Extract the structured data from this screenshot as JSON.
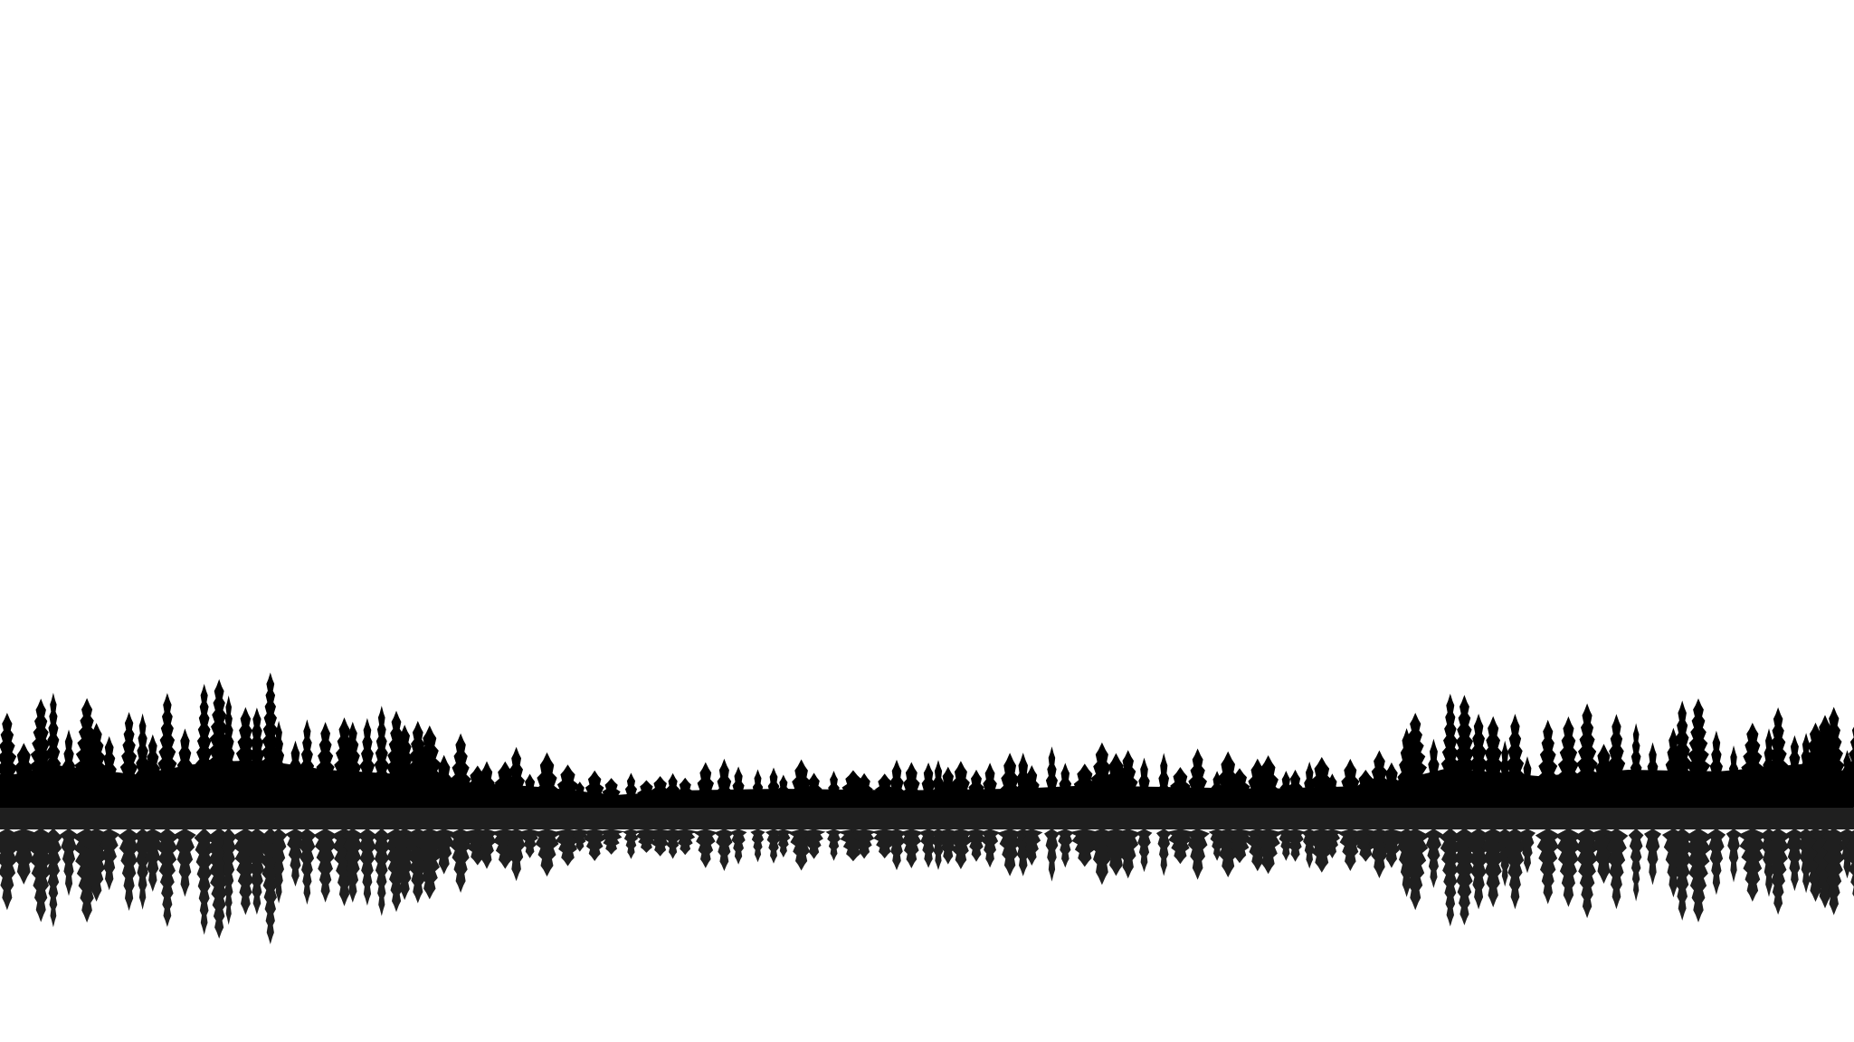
{
  "scene": {
    "subject": "forest-silhouette-with-reflection",
    "colors": {
      "background": "#ffffff",
      "forest": "#000000",
      "reflection": "#1f1f1f",
      "water_band": "#1f1f1f"
    }
  }
}
